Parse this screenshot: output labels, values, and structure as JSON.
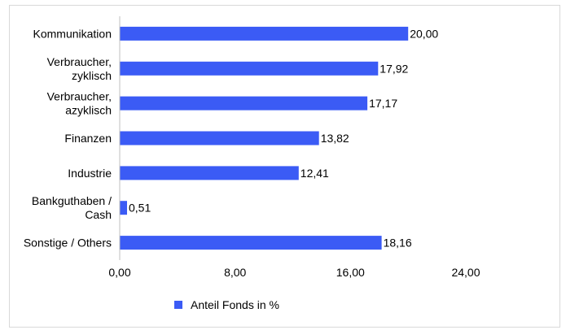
{
  "chart_data": {
    "type": "bar",
    "orientation": "horizontal",
    "categories": [
      [
        "Kommunikation"
      ],
      [
        "Verbraucher,",
        "zyklisch"
      ],
      [
        "Verbraucher,",
        "azyklisch"
      ],
      [
        "Finanzen"
      ],
      [
        "Industrie"
      ],
      [
        "Bankguthaben /",
        "Cash"
      ],
      [
        "Sonstige / Others"
      ]
    ],
    "series": [
      {
        "name": "Anteil Fonds in %",
        "values": [
          20.0,
          17.92,
          17.17,
          13.82,
          12.41,
          0.51,
          18.16
        ],
        "value_labels": [
          "20,00",
          "17,92",
          "17,17",
          "13,82",
          "12,41",
          "0,51",
          "18,16"
        ],
        "color": "#3b5bf5"
      }
    ],
    "xlim": [
      0,
      24
    ],
    "x_ticks": [
      0,
      8,
      16,
      24
    ],
    "x_tick_labels": [
      "0,00",
      "8,00",
      "16,00",
      "24,00"
    ],
    "grid": false,
    "legend_position": "bottom"
  }
}
